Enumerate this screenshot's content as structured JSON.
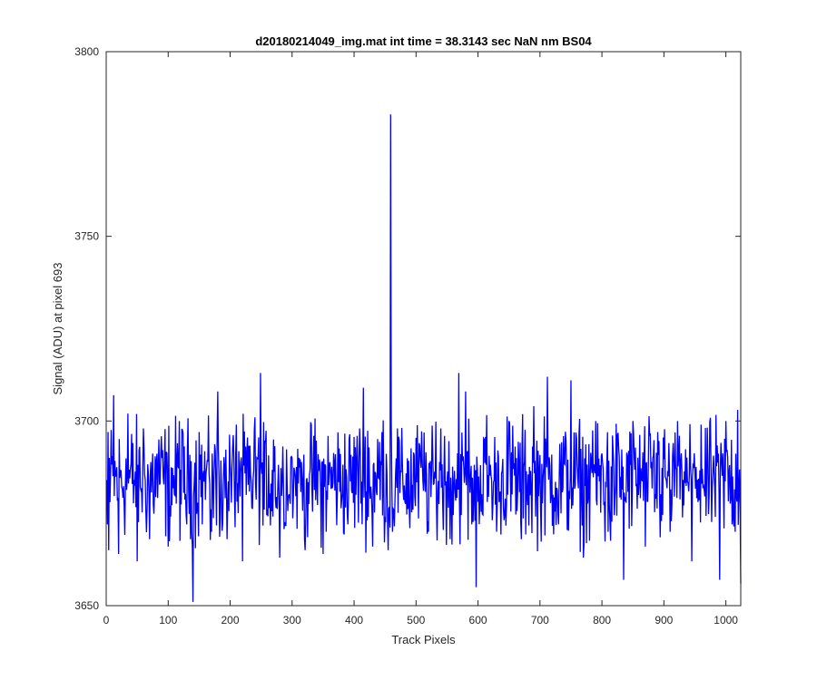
{
  "chart_data": {
    "type": "line",
    "title": "d20180214049_img.mat int time = 38.3143 sec  NaN nm BS04",
    "xlabel": "Track Pixels",
    "ylabel": "Signal (ADU) at pixel 693",
    "xlim": [
      0,
      1024
    ],
    "ylim": [
      3650,
      3800
    ],
    "xticks": [
      0,
      100,
      200,
      300,
      400,
      500,
      600,
      700,
      800,
      900,
      1000
    ],
    "yticks": [
      3650,
      3700,
      3750,
      3800
    ],
    "grid": false,
    "line_color": "#0000ff",
    "series": [
      {
        "noise_baseline": 3684,
        "noise_amplitude": 12,
        "points": [
          [
            1,
            3684
          ],
          [
            2,
            3672
          ],
          [
            3,
            3697
          ],
          [
            4,
            3665
          ],
          [
            5,
            3690
          ],
          [
            6,
            3678
          ],
          [
            12,
            3707
          ],
          [
            20,
            3664
          ],
          [
            35,
            3702
          ],
          [
            50,
            3662
          ],
          [
            60,
            3698
          ],
          [
            70,
            3668
          ],
          [
            85,
            3695
          ],
          [
            100,
            3666
          ],
          [
            118,
            3700
          ],
          [
            130,
            3672
          ],
          [
            140,
            3651
          ],
          [
            150,
            3697
          ],
          [
            170,
            3670
          ],
          [
            180,
            3708
          ],
          [
            195,
            3668
          ],
          [
            210,
            3699
          ],
          [
            220,
            3662
          ],
          [
            240,
            3701
          ],
          [
            249,
            3713
          ],
          [
            255,
            3676
          ],
          [
            270,
            3695
          ],
          [
            280,
            3663
          ],
          [
            300,
            3690
          ],
          [
            320,
            3668
          ],
          [
            335,
            3696
          ],
          [
            350,
            3664
          ],
          [
            370,
            3691
          ],
          [
            390,
            3672
          ],
          [
            405,
            3696
          ],
          [
            415,
            3709
          ],
          [
            430,
            3666
          ],
          [
            445,
            3697
          ],
          [
            455,
            3665
          ],
          [
            459,
            3783
          ],
          [
            462,
            3670
          ],
          [
            470,
            3698
          ],
          [
            490,
            3671
          ],
          [
            505,
            3694
          ],
          [
            520,
            3670
          ],
          [
            540,
            3698
          ],
          [
            555,
            3668
          ],
          [
            569,
            3713
          ],
          [
            580,
            3708
          ],
          [
            590,
            3672
          ],
          [
            597,
            3655
          ],
          [
            610,
            3695
          ],
          [
            630,
            3670
          ],
          [
            650,
            3700
          ],
          [
            670,
            3668
          ],
          [
            690,
            3704
          ],
          [
            712,
            3712
          ],
          [
            730,
            3672
          ],
          [
            750,
            3711
          ],
          [
            770,
            3663
          ],
          [
            790,
            3700
          ],
          [
            810,
            3670
          ],
          [
            835,
            3657
          ],
          [
            850,
            3700
          ],
          [
            870,
            3666
          ],
          [
            890,
            3697
          ],
          [
            910,
            3670
          ],
          [
            925,
            3696
          ],
          [
            945,
            3662
          ],
          [
            960,
            3699
          ],
          [
            990,
            3657
          ],
          [
            1000,
            3700
          ],
          [
            1015,
            3670
          ],
          [
            1019,
            3703
          ],
          [
            1024,
            3656
          ]
        ]
      }
    ]
  }
}
